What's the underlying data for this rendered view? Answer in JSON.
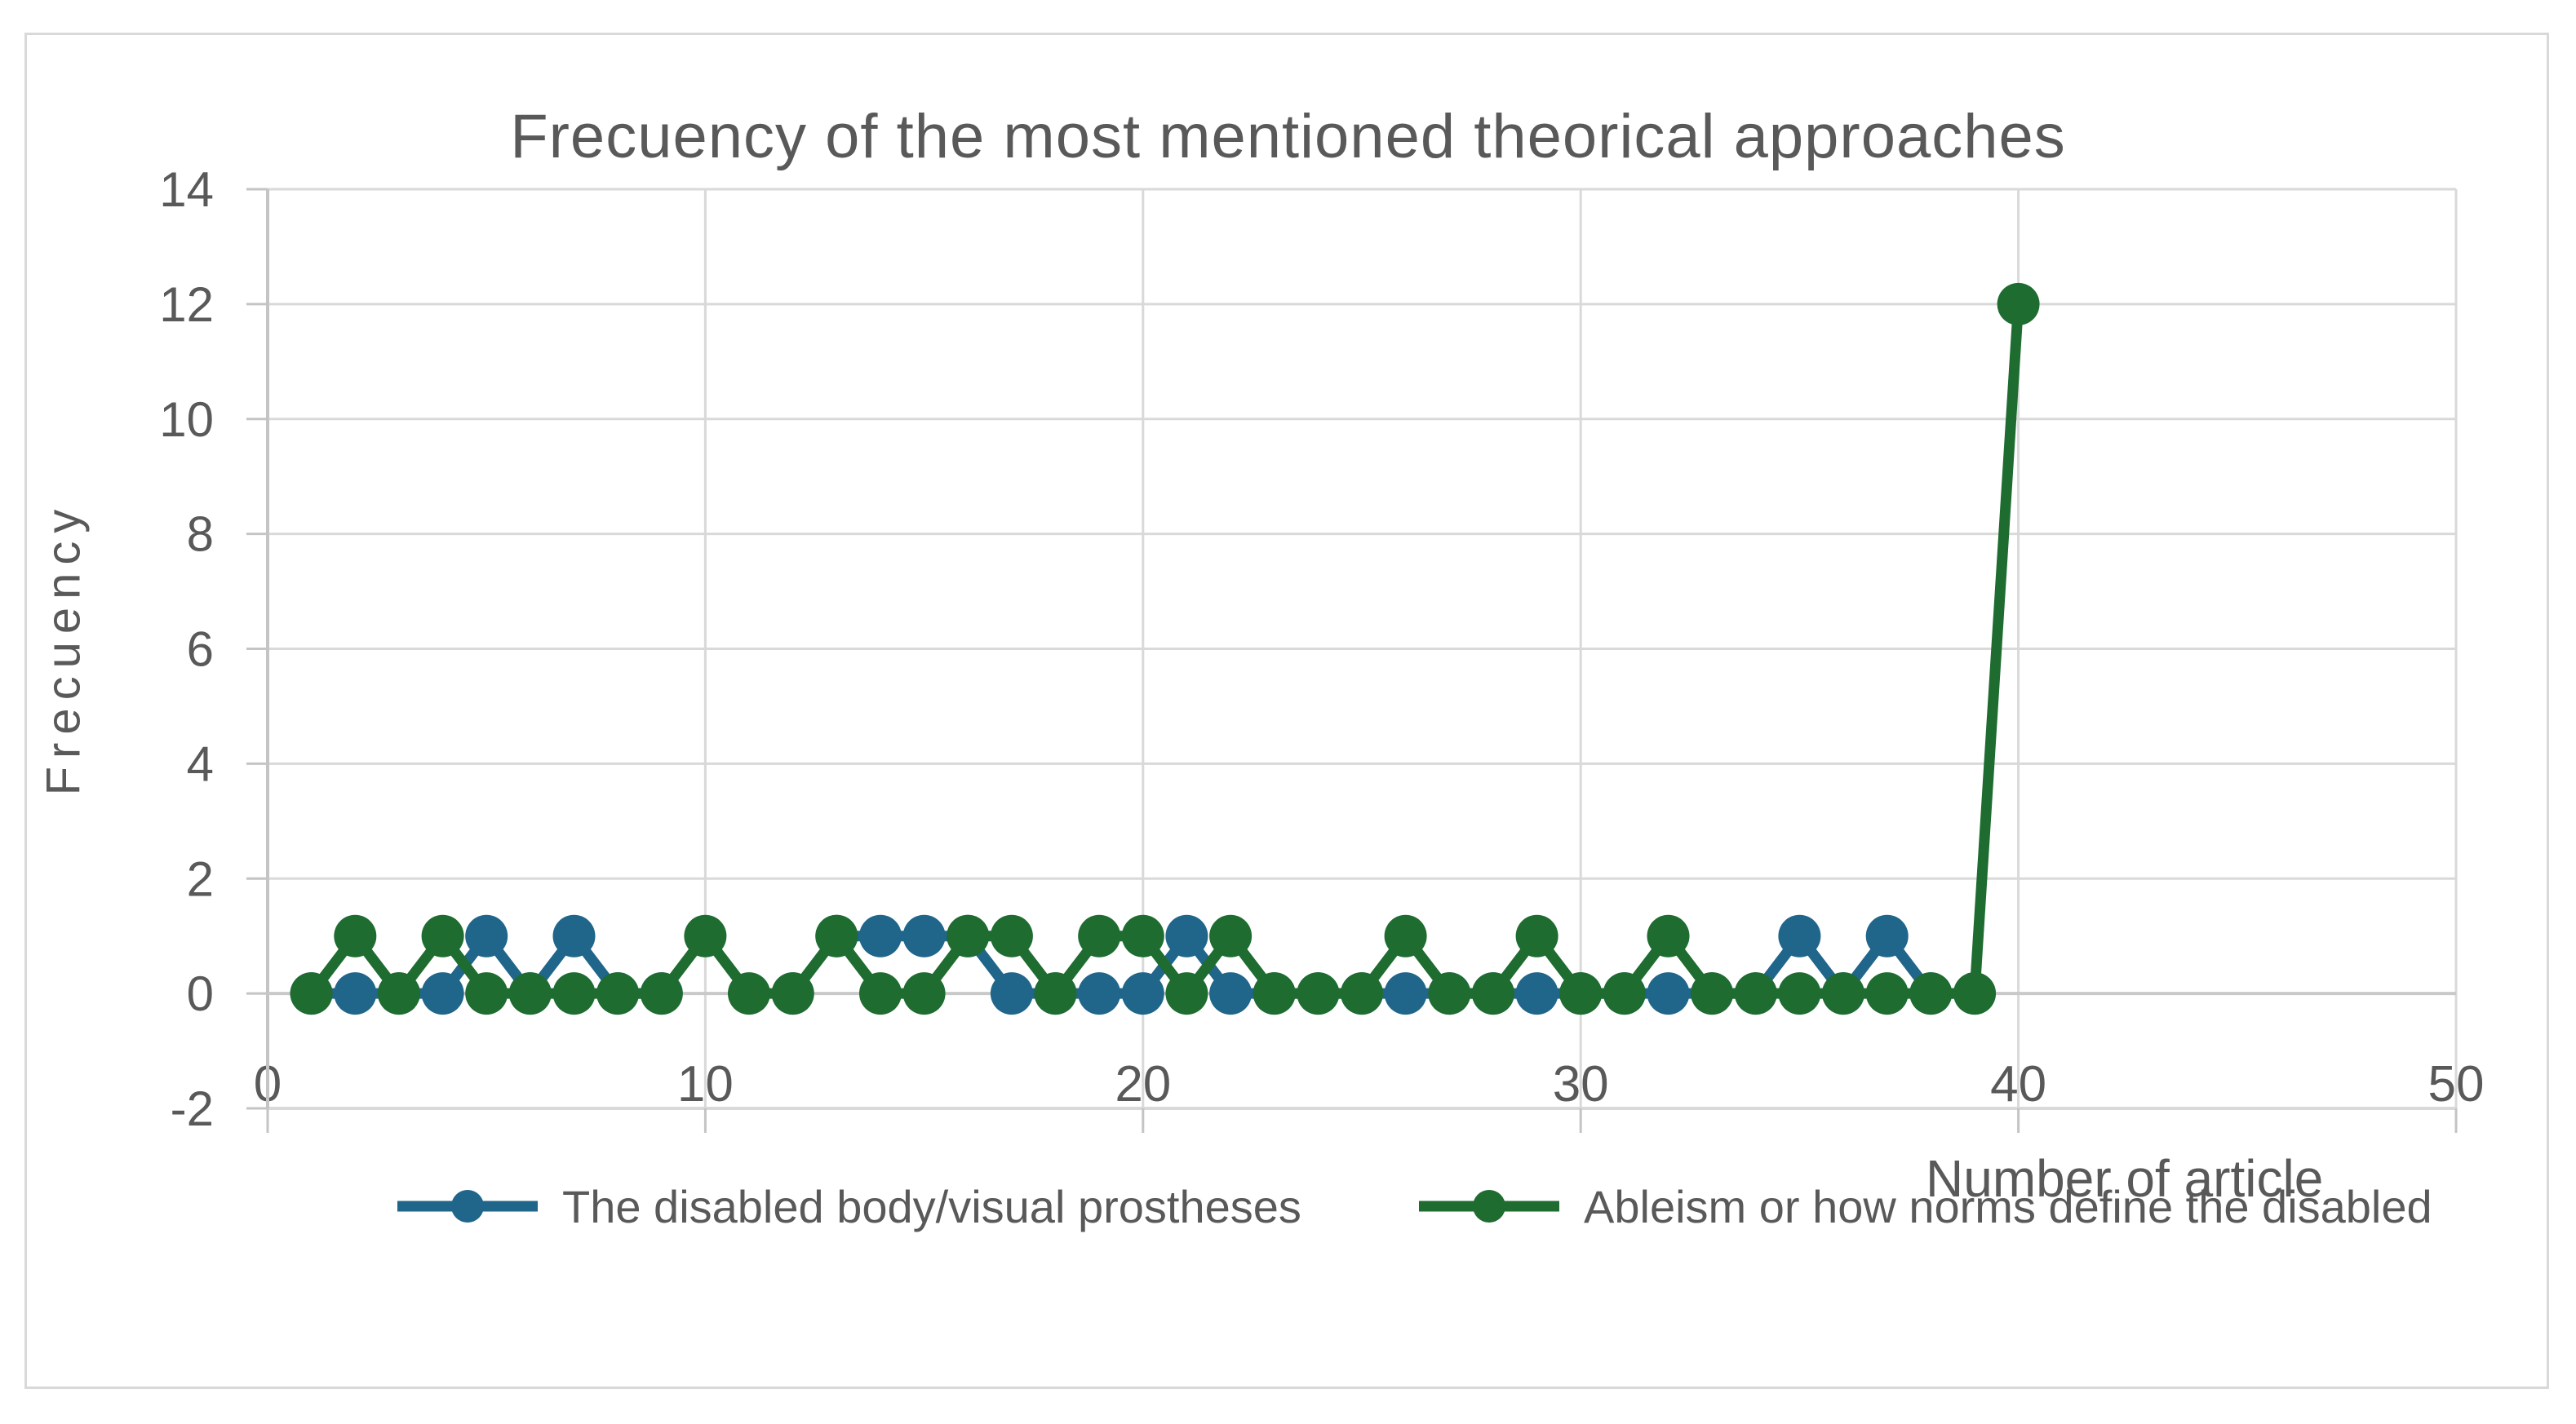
{
  "chart_data": {
    "type": "line",
    "title": "Frecuency of the most mentioned theorical approaches",
    "xlabel": "Number of article",
    "ylabel": "Frecuency",
    "xlim": [
      0,
      50
    ],
    "ylim": [
      -2,
      14
    ],
    "x_ticks": [
      0,
      10,
      20,
      30,
      40,
      50
    ],
    "y_ticks": [
      -2,
      0,
      2,
      4,
      6,
      8,
      10,
      12,
      14
    ],
    "grid": true,
    "legend_position": "bottom",
    "x": [
      1,
      2,
      3,
      4,
      5,
      6,
      7,
      8,
      9,
      10,
      11,
      12,
      13,
      14,
      15,
      16,
      17,
      18,
      19,
      20,
      21,
      22,
      23,
      24,
      25,
      26,
      27,
      28,
      29,
      30,
      31,
      32,
      33,
      34,
      35,
      36,
      37,
      38,
      39,
      40
    ],
    "series": [
      {
        "name": "The disabled body/visual prostheses",
        "color": "#20658A",
        "values": [
          0,
          0,
          0,
          0,
          1,
          0,
          1,
          0,
          0,
          null,
          null,
          0,
          1,
          1,
          1,
          1,
          0,
          0,
          0,
          0,
          1,
          0,
          0,
          0,
          0,
          0,
          0,
          0,
          0,
          0,
          0,
          0,
          0,
          0,
          1,
          0,
          1,
          0,
          0,
          null
        ]
      },
      {
        "name": "Ableism or how norms define the disabled",
        "color": "#1E6C30",
        "values": [
          0,
          1,
          0,
          1,
          0,
          0,
          0,
          0,
          0,
          1,
          0,
          0,
          1,
          0,
          0,
          1,
          1,
          0,
          1,
          1,
          0,
          1,
          0,
          0,
          0,
          1,
          0,
          0,
          1,
          0,
          0,
          1,
          0,
          0,
          0,
          0,
          0,
          0,
          0,
          12
        ]
      }
    ],
    "colors": {
      "gridline": "#D9D9D9",
      "axis_line": "#C4C4C4",
      "tick_text": "#595959",
      "title_text": "#595959"
    }
  }
}
